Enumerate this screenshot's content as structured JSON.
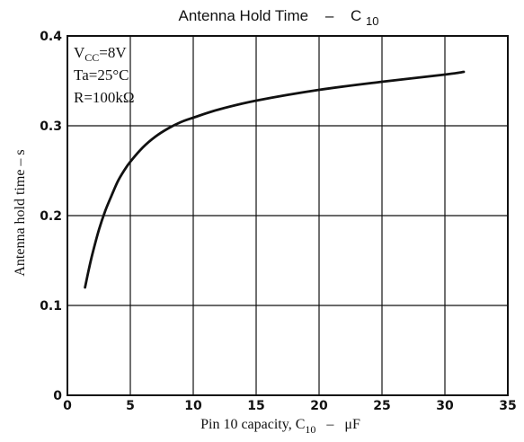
{
  "chart_data": {
    "type": "line",
    "title": {
      "main": "Antenna Hold Time",
      "dash": "–",
      "symbol": "C",
      "subscript": "10"
    },
    "xlabel": {
      "text": "Pin 10 capacity, C",
      "subscript": "10",
      "dash": "–",
      "unit": "μF"
    },
    "ylabel": "Antenna hold time   –   s",
    "xlim": [
      0,
      35
    ],
    "ylim": [
      0,
      0.4
    ],
    "x_ticks": [
      0,
      5,
      10,
      15,
      20,
      25,
      30,
      35
    ],
    "x_tick_labels": [
      "0",
      "5",
      "10",
      "15",
      "20",
      "25",
      "30",
      "35"
    ],
    "y_ticks": [
      0,
      0.1,
      0.2,
      0.3,
      0.4
    ],
    "y_tick_labels": [
      "0",
      "0.1",
      "0.2",
      "0.3",
      "0.4"
    ],
    "grid": true,
    "conditions": [
      {
        "base": "V",
        "sub": "CC",
        "rest": "=8V"
      },
      {
        "base": "Ta=25°C",
        "sub": "",
        "rest": ""
      },
      {
        "base": "R=100kΩ",
        "sub": "",
        "rest": ""
      }
    ],
    "series": [
      {
        "x": [
          1.4,
          1.7,
          2.0,
          2.5,
          3.0,
          3.5,
          4.0,
          4.5,
          5.0,
          6.0,
          7.0,
          8.0,
          9.0,
          10.0,
          12.0,
          15.0,
          20.0,
          25.0,
          30.0,
          31.5
        ],
        "y": [
          0.12,
          0.14,
          0.158,
          0.184,
          0.205,
          0.222,
          0.238,
          0.25,
          0.26,
          0.276,
          0.288,
          0.297,
          0.304,
          0.309,
          0.318,
          0.328,
          0.34,
          0.349,
          0.357,
          0.36
        ]
      }
    ]
  },
  "colors": {
    "line": "#111111",
    "grid": "#111111",
    "background": "#ffffff"
  }
}
